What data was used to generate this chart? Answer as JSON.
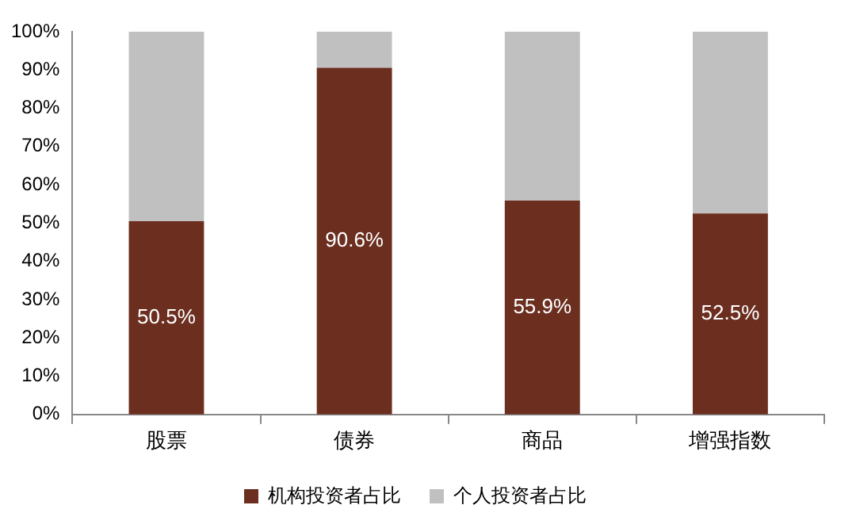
{
  "chart_data": {
    "type": "bar",
    "stacked": true,
    "categories": [
      "股票",
      "债券",
      "商品",
      "增强指数"
    ],
    "series": [
      {
        "name": "机构投资者占比",
        "color": "#6b2e1f",
        "values": [
          50.5,
          90.6,
          55.9,
          52.5
        ],
        "value_labels": [
          "50.5%",
          "90.6%",
          "55.9%",
          "52.5%"
        ]
      },
      {
        "name": "个人投资者占比",
        "color": "#c0c0c0",
        "values": [
          49.5,
          9.4,
          44.1,
          47.5
        ]
      }
    ],
    "ylim": [
      0,
      100
    ],
    "yticks": [
      {
        "value": 0,
        "label": "0%"
      },
      {
        "value": 10,
        "label": "10%"
      },
      {
        "value": 20,
        "label": "20%"
      },
      {
        "value": 30,
        "label": "30%"
      },
      {
        "value": 40,
        "label": "40%"
      },
      {
        "value": 50,
        "label": "50%"
      },
      {
        "value": 60,
        "label": "60%"
      },
      {
        "value": 70,
        "label": "70%"
      },
      {
        "value": 80,
        "label": "80%"
      },
      {
        "value": 90,
        "label": "90%"
      },
      {
        "value": 100,
        "label": "100%"
      }
    ],
    "grid": false,
    "legend": "bottom"
  }
}
